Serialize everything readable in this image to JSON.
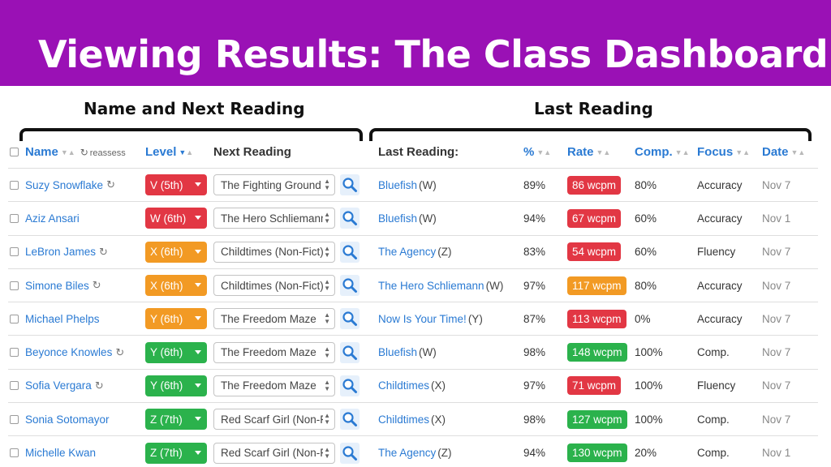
{
  "title": "Viewing Results: The Class Dashboard",
  "sections": {
    "left": "Name and Next Reading",
    "right": "Last Reading"
  },
  "colors": {
    "banner": "#9a11b5",
    "link": "#2a7ad3",
    "red": "#e23744",
    "orange": "#f29a24",
    "green": "#2bb24c"
  },
  "columns": {
    "name": "Name",
    "reassess": "reassess",
    "level": "Level",
    "next": "Next Reading",
    "last": "Last Reading:",
    "pct": "%",
    "rate": "Rate",
    "comp": "Comp.",
    "focus": "Focus",
    "date": "Date",
    "sort_arrows": "▼▲"
  },
  "icons": {
    "refresh": "↻",
    "search": "magnifier-icon",
    "select": "up-down-arrows"
  },
  "rows": [
    {
      "name": "Suzy Snowflake",
      "refresh": true,
      "level": "V (5th)",
      "level_color": "red",
      "next": "The Fighting Ground",
      "last_title": "Bluefish",
      "last_level": "(W)",
      "pct": "89%",
      "rate": "86 wcpm",
      "rate_color": "red",
      "comp": "80%",
      "focus": "Accuracy",
      "date": "Nov 7"
    },
    {
      "name": "Aziz Ansari",
      "refresh": false,
      "level": "W (6th)",
      "level_color": "red",
      "next": "The Hero Schliemann",
      "last_title": "Bluefish",
      "last_level": "(W)",
      "pct": "94%",
      "rate": "67 wcpm",
      "rate_color": "red",
      "comp": "60%",
      "focus": "Accuracy",
      "date": "Nov 1"
    },
    {
      "name": "LeBron James",
      "refresh": true,
      "level": "X (6th)",
      "level_color": "orange",
      "next": "Childtimes (Non-Fict)",
      "last_title": "The Agency",
      "last_level": "(Z)",
      "pct": "83%",
      "rate": "54 wcpm",
      "rate_color": "red",
      "comp": "60%",
      "focus": "Fluency",
      "date": "Nov 7"
    },
    {
      "name": "Simone Biles",
      "refresh": true,
      "level": "X (6th)",
      "level_color": "orange",
      "next": "Childtimes (Non-Fict)",
      "last_title": "The Hero Schliemann",
      "last_level": "(W)",
      "pct": "97%",
      "rate": "117 wcpm",
      "rate_color": "orange",
      "comp": "80%",
      "focus": "Accuracy",
      "date": "Nov 7"
    },
    {
      "name": "Michael Phelps",
      "refresh": false,
      "level": "Y (6th)",
      "level_color": "orange",
      "next": "The Freedom Maze",
      "last_title": "Now Is Your Time!",
      "last_level": "(Y)",
      "pct": "87%",
      "rate": "113 wcpm",
      "rate_color": "red",
      "comp": "0%",
      "focus": "Accuracy",
      "date": "Nov 7"
    },
    {
      "name": "Beyonce Knowles",
      "refresh": true,
      "level": "Y (6th)",
      "level_color": "green",
      "next": "The Freedom Maze",
      "last_title": "Bluefish",
      "last_level": "(W)",
      "pct": "98%",
      "rate": "148 wcpm",
      "rate_color": "green",
      "comp": "100%",
      "focus": "Comp.",
      "date": "Nov 7"
    },
    {
      "name": "Sofia Vergara",
      "refresh": true,
      "level": "Y (6th)",
      "level_color": "green",
      "next": "The Freedom Maze",
      "last_title": "Childtimes",
      "last_level": "(X)",
      "pct": "97%",
      "rate": "71 wcpm",
      "rate_color": "red",
      "comp": "100%",
      "focus": "Fluency",
      "date": "Nov 7"
    },
    {
      "name": "Sonia Sotomayor",
      "refresh": false,
      "level": "Z (7th)",
      "level_color": "green",
      "next": "Red Scarf Girl (Non-Fi",
      "last_title": "Childtimes",
      "last_level": "(X)",
      "pct": "98%",
      "rate": "127 wcpm",
      "rate_color": "green",
      "comp": "100%",
      "focus": "Comp.",
      "date": "Nov 7"
    },
    {
      "name": "Michelle Kwan",
      "refresh": false,
      "level": "Z (7th)",
      "level_color": "green",
      "next": "Red Scarf Girl (Non-Fi",
      "last_title": "The Agency",
      "last_level": "(Z)",
      "pct": "94%",
      "rate": "130 wcpm",
      "rate_color": "green",
      "comp": "20%",
      "focus": "Comp.",
      "date": "Nov 1"
    }
  ]
}
